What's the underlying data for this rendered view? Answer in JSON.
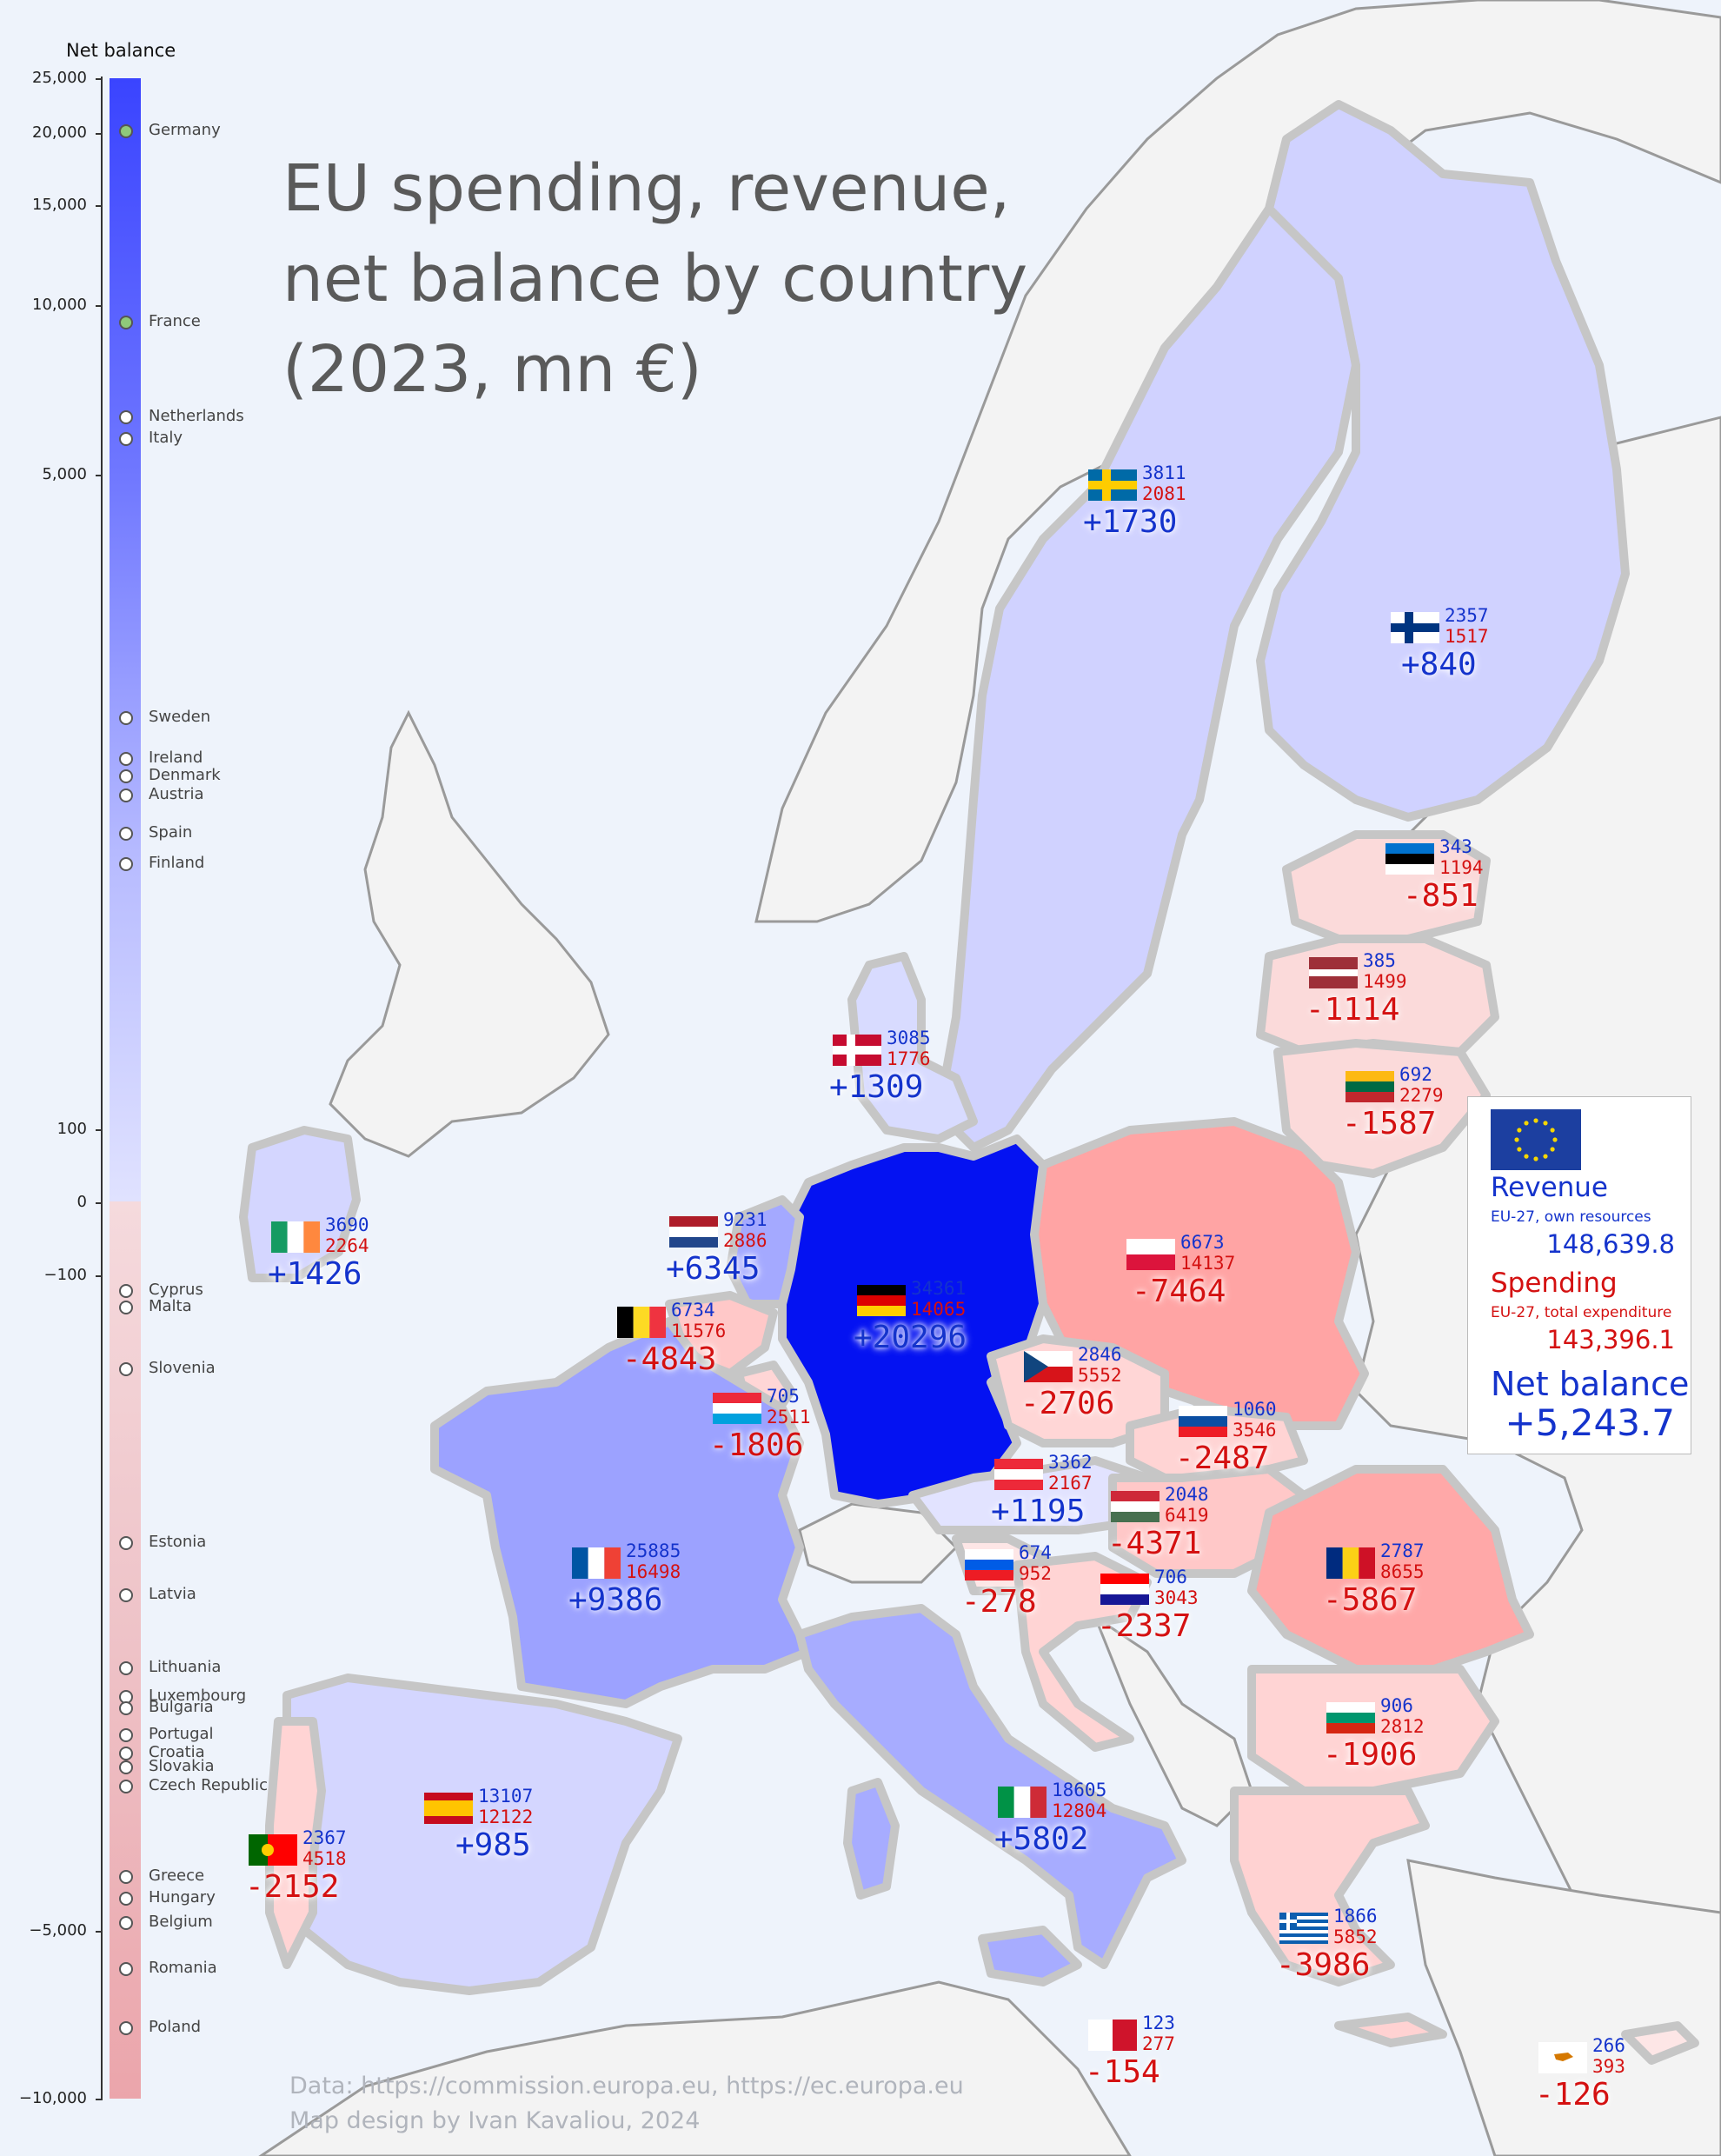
{
  "title_lines": [
    "EU spending, revenue,",
    "net balance by country",
    "(2023, mn €)"
  ],
  "scale": {
    "title": "Net balance",
    "ticks": [
      "25,000",
      "20,000",
      "15,000",
      "10,000",
      "5,000",
      "100",
      "0",
      "−100",
      "−5,000",
      "−10,000"
    ],
    "positive_color": "#3a44ff",
    "negative_color": "#eba5ab",
    "order": [
      "Germany",
      "France",
      "Netherlands",
      "Italy",
      "Sweden",
      "Ireland",
      "Denmark",
      "Austria",
      "Spain",
      "Finland",
      "Cyprus",
      "Malta",
      "Slovenia",
      "Estonia",
      "Latvia",
      "Lithuania",
      "Luxembourg",
      "Bulgaria",
      "Portugal",
      "Croatia",
      "Slovakia",
      "Czech Republic",
      "Greece",
      "Hungary",
      "Belgium",
      "Romania",
      "Poland"
    ]
  },
  "countries": [
    {
      "name": "Germany",
      "revenue": "34361",
      "spending": "14065",
      "net": "+20296"
    },
    {
      "name": "France",
      "revenue": "25885",
      "spending": "16498",
      "net": "+9386"
    },
    {
      "name": "Netherlands",
      "revenue": "9231",
      "spending": "2886",
      "net": "+6345"
    },
    {
      "name": "Italy",
      "revenue": "18605",
      "spending": "12804",
      "net": "+5802"
    },
    {
      "name": "Sweden",
      "revenue": "3811",
      "spending": "2081",
      "net": "+1730"
    },
    {
      "name": "Ireland",
      "revenue": "3690",
      "spending": "2264",
      "net": "+1426"
    },
    {
      "name": "Denmark",
      "revenue": "3085",
      "spending": "1776",
      "net": "+1309"
    },
    {
      "name": "Austria",
      "revenue": "3362",
      "spending": "2167",
      "net": "+1195"
    },
    {
      "name": "Spain",
      "revenue": "13107",
      "spending": "12122",
      "net": "+985"
    },
    {
      "name": "Finland",
      "revenue": "2357",
      "spending": "1517",
      "net": "+840"
    },
    {
      "name": "Cyprus",
      "revenue": "266",
      "spending": "393",
      "net": "-126"
    },
    {
      "name": "Malta",
      "revenue": "123",
      "spending": "277",
      "net": "-154"
    },
    {
      "name": "Slovenia",
      "revenue": "674",
      "spending": "952",
      "net": "-278"
    },
    {
      "name": "Estonia",
      "revenue": "343",
      "spending": "1194",
      "net": "-851"
    },
    {
      "name": "Latvia",
      "revenue": "385",
      "spending": "1499",
      "net": "-1114"
    },
    {
      "name": "Lithuania",
      "revenue": "692",
      "spending": "2279",
      "net": "-1587"
    },
    {
      "name": "Luxembourg",
      "revenue": "705",
      "spending": "2511",
      "net": "-1806"
    },
    {
      "name": "Bulgaria",
      "revenue": "906",
      "spending": "2812",
      "net": "-1906"
    },
    {
      "name": "Portugal",
      "revenue": "2367",
      "spending": "4518",
      "net": "-2152"
    },
    {
      "name": "Croatia",
      "revenue": "706",
      "spending": "3043",
      "net": "-2337"
    },
    {
      "name": "Slovakia",
      "revenue": "1060",
      "spending": "3546",
      "net": "-2487"
    },
    {
      "name": "Czech Republic",
      "revenue": "2846",
      "spending": "5552",
      "net": "-2706"
    },
    {
      "name": "Greece",
      "revenue": "1866",
      "spending": "5852",
      "net": "-3986"
    },
    {
      "name": "Hungary",
      "revenue": "2048",
      "spending": "6419",
      "net": "-4371"
    },
    {
      "name": "Belgium",
      "revenue": "6734",
      "spending": "11576",
      "net": "-4843"
    },
    {
      "name": "Romania",
      "revenue": "2787",
      "spending": "8655",
      "net": "-5867"
    },
    {
      "name": "Poland",
      "revenue": "6673",
      "spending": "14137",
      "net": "-7464"
    }
  ],
  "legend": {
    "revenue_title": "Revenue",
    "revenue_sub": "EU-27, own resources",
    "revenue_value": "148,639.8",
    "spending_title": "Spending",
    "spending_sub": "EU-27, total expenditure",
    "spending_value": "143,396.1",
    "net_title": "Net balance",
    "net_value": "+5,243.7"
  },
  "credits": {
    "data": "Data: https://commission.europa.eu, https://ec.europa.eu",
    "design": "Map design by Ivan Kavaliou, 2024"
  },
  "colors": {
    "revenue_text": "#1433cc",
    "spending_text": "#d41111",
    "land_non_eu": "#f3f3f3",
    "border": "#9a9a9a",
    "sea": "#eef3fb"
  }
}
